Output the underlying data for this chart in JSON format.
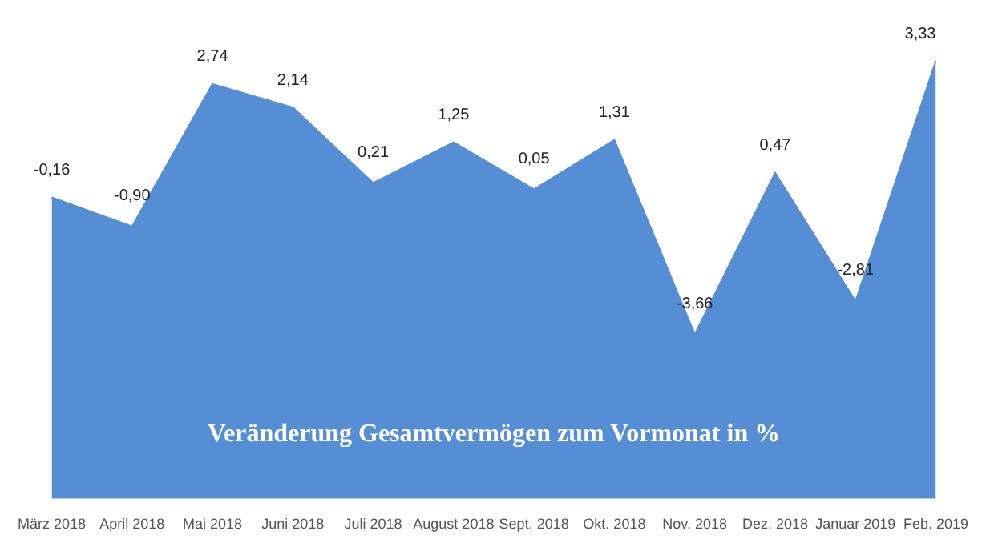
{
  "chart_data": {
    "type": "area",
    "title": "Veränderung Gesamtvermögen zum Vormonat in %",
    "categories": [
      "März 2018",
      "April 2018",
      "Mai 2018",
      "Juni 2018",
      "Juli 2018",
      "August 2018",
      "Sept. 2018",
      "Okt. 2018",
      "Nov. 2018",
      "Dez. 2018",
      "Januar 2019",
      "Feb. 2019"
    ],
    "series": [
      {
        "color": "#558ed5",
        "values": [
          -0.16,
          -0.9,
          2.74,
          2.14,
          0.21,
          1.25,
          0.05,
          1.31,
          -3.66,
          0.47,
          -2.81,
          3.33
        ],
        "value_labels": [
          "-0,16",
          "-0,90",
          "2,74",
          "2,14",
          "0,21",
          "1,25",
          "0,05",
          "1,31",
          "-3,66",
          "0,47",
          "-2,81",
          "3,33"
        ]
      }
    ],
    "grid": false,
    "legend": false
  }
}
